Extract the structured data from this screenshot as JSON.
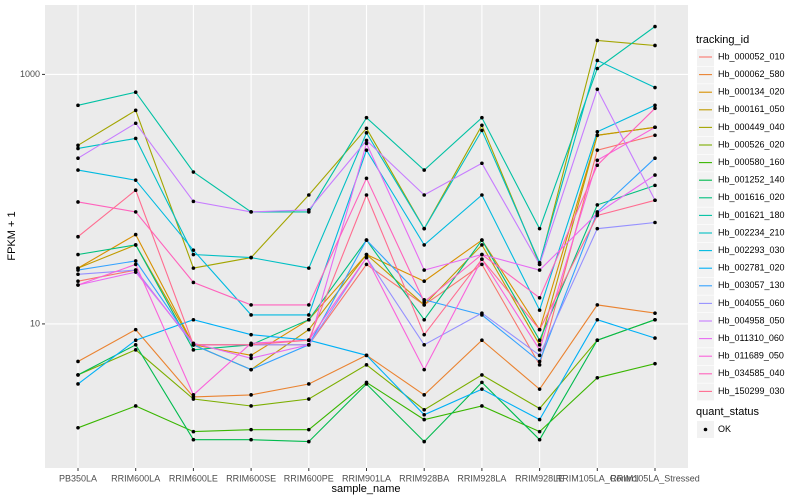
{
  "chart_data": {
    "type": "line",
    "x_label": "sample_name",
    "y_label": "FPKM + 1",
    "yscale": "log",
    "grid": true,
    "ylim": [
      0.7,
      3600
    ],
    "yticks": [
      10,
      1000
    ],
    "categories": [
      "PB350LA",
      "RRIM600LA",
      "RRIM600LE",
      "RRIM600SE",
      "RRIM600PE",
      "RRIM901LA",
      "RRIM928BA",
      "RRIM928LA",
      "RRIM928LE",
      "RRIM105LA_Control",
      "RRIM105LA_Stressed"
    ],
    "legend_title": "tracking_id",
    "point_legend_title": "quant_status",
    "point_legend_label": "OK",
    "point_color": "#000000",
    "series": [
      {
        "name": "Hb_000052_010",
        "color": "#F8766D",
        "values": [
          22,
          27,
          6.8,
          6.8,
          6.8,
          30,
          14.2,
          30,
          4.7,
          247,
          325
        ]
      },
      {
        "name": "Hb_000062_580",
        "color": "#EA8331",
        "values": [
          5.0,
          9.0,
          2.6,
          2.7,
          3.3,
          5.6,
          2.7,
          7.4,
          3.0,
          14.2,
          12.2
        ]
      },
      {
        "name": "Hb_000134_020",
        "color": "#D89000",
        "values": [
          28,
          52,
          6.8,
          5.6,
          10.8,
          36,
          22,
          47,
          9.0,
          325,
          377
        ]
      },
      {
        "name": "Hb_000161_050",
        "color": "#C09B00",
        "values": [
          28,
          43,
          6.8,
          4.3,
          9.0,
          36,
          14.2,
          43,
          6.8,
          325,
          377
        ]
      },
      {
        "name": "Hb_000449_040",
        "color": "#A3A500",
        "values": [
          270,
          515,
          28,
          34,
          108,
          370,
          58,
          391,
          30,
          1871,
          1706
        ]
      },
      {
        "name": "Hb_000526_020",
        "color": "#7CAE00",
        "values": [
          3.9,
          6.2,
          2.5,
          2.2,
          2.5,
          4.7,
          2.05,
          3.9,
          2.1,
          7.4,
          10.8
        ]
      },
      {
        "name": "Hb_000580_160",
        "color": "#39B600",
        "values": [
          1.47,
          2.2,
          1.37,
          1.42,
          1.42,
          3.4,
          1.71,
          2.2,
          1.37,
          3.7,
          4.8
        ]
      },
      {
        "name": "Hb_001252_140",
        "color": "#00BB4E",
        "values": [
          3.9,
          6.8,
          1.18,
          1.18,
          1.14,
          3.3,
          1.14,
          3.4,
          1.18,
          7.4,
          10.8
        ]
      },
      {
        "name": "Hb_001616_020",
        "color": "#00BF7D",
        "values": [
          36,
          43,
          6.2,
          6.8,
          10.8,
          47,
          10.8,
          47,
          7.4,
          90,
          129
        ]
      },
      {
        "name": "Hb_001621_180",
        "color": "#00C1A3",
        "values": [
          565,
          720,
          165,
          79,
          79,
          450,
          171,
          450,
          58,
          1115,
          2420
        ]
      },
      {
        "name": "Hb_002234_210",
        "color": "#00BFC4",
        "values": [
          255,
          307,
          36,
          34,
          28,
          340,
          58,
          356,
          31,
          1294,
          785
        ]
      },
      {
        "name": "Hb_002293_030",
        "color": "#00BAE0",
        "values": [
          171,
          142,
          39,
          11.8,
          11.8,
          247,
          43,
          108,
          12.9,
          347,
          565
        ]
      },
      {
        "name": "Hb_002781_020",
        "color": "#00B0F6",
        "values": [
          3.3,
          7.4,
          10.8,
          8.2,
          7.4,
          5.6,
          1.87,
          3.0,
          1.71,
          10.8,
          7.7
        ]
      },
      {
        "name": "Hb_003057_130",
        "color": "#35A2FF",
        "values": [
          27,
          32,
          6.8,
          4.3,
          6.8,
          47,
          15.6,
          11.8,
          5.0,
          79,
          213
        ]
      },
      {
        "name": "Hb_004055_060",
        "color": "#9590FF",
        "values": [
          25,
          27,
          6.8,
          6.8,
          6.8,
          34,
          6.8,
          12.2,
          5.6,
          58,
          65
        ]
      },
      {
        "name": "Hb_004958_050",
        "color": "#C77CFF",
        "values": [
          213,
          406,
          96,
          79,
          82,
          296,
          108,
          194,
          30,
          760,
          98
        ]
      },
      {
        "name": "Hb_011310_060",
        "color": "#E76BF3",
        "values": [
          20.5,
          26,
          7.0,
          5.3,
          6.8,
          280,
          27,
          36,
          27,
          77,
          156
        ]
      },
      {
        "name": "Hb_011689_050",
        "color": "#FA62DB",
        "values": [
          20.5,
          30,
          2.7,
          7.0,
          7.4,
          34,
          4.3,
          33,
          6.2,
          205,
          377
        ]
      },
      {
        "name": "Hb_034585_040",
        "color": "#FF62BC",
        "values": [
          95,
          79,
          21.5,
          14.2,
          14.2,
          147,
          15,
          36,
          16.2,
          187,
          535
        ]
      },
      {
        "name": "Hb_150299_030",
        "color": "#FF6C90",
        "values": [
          50,
          118,
          6.8,
          6.8,
          7.4,
          108,
          8.2,
          33,
          9.0,
          74,
          98
        ]
      }
    ]
  }
}
